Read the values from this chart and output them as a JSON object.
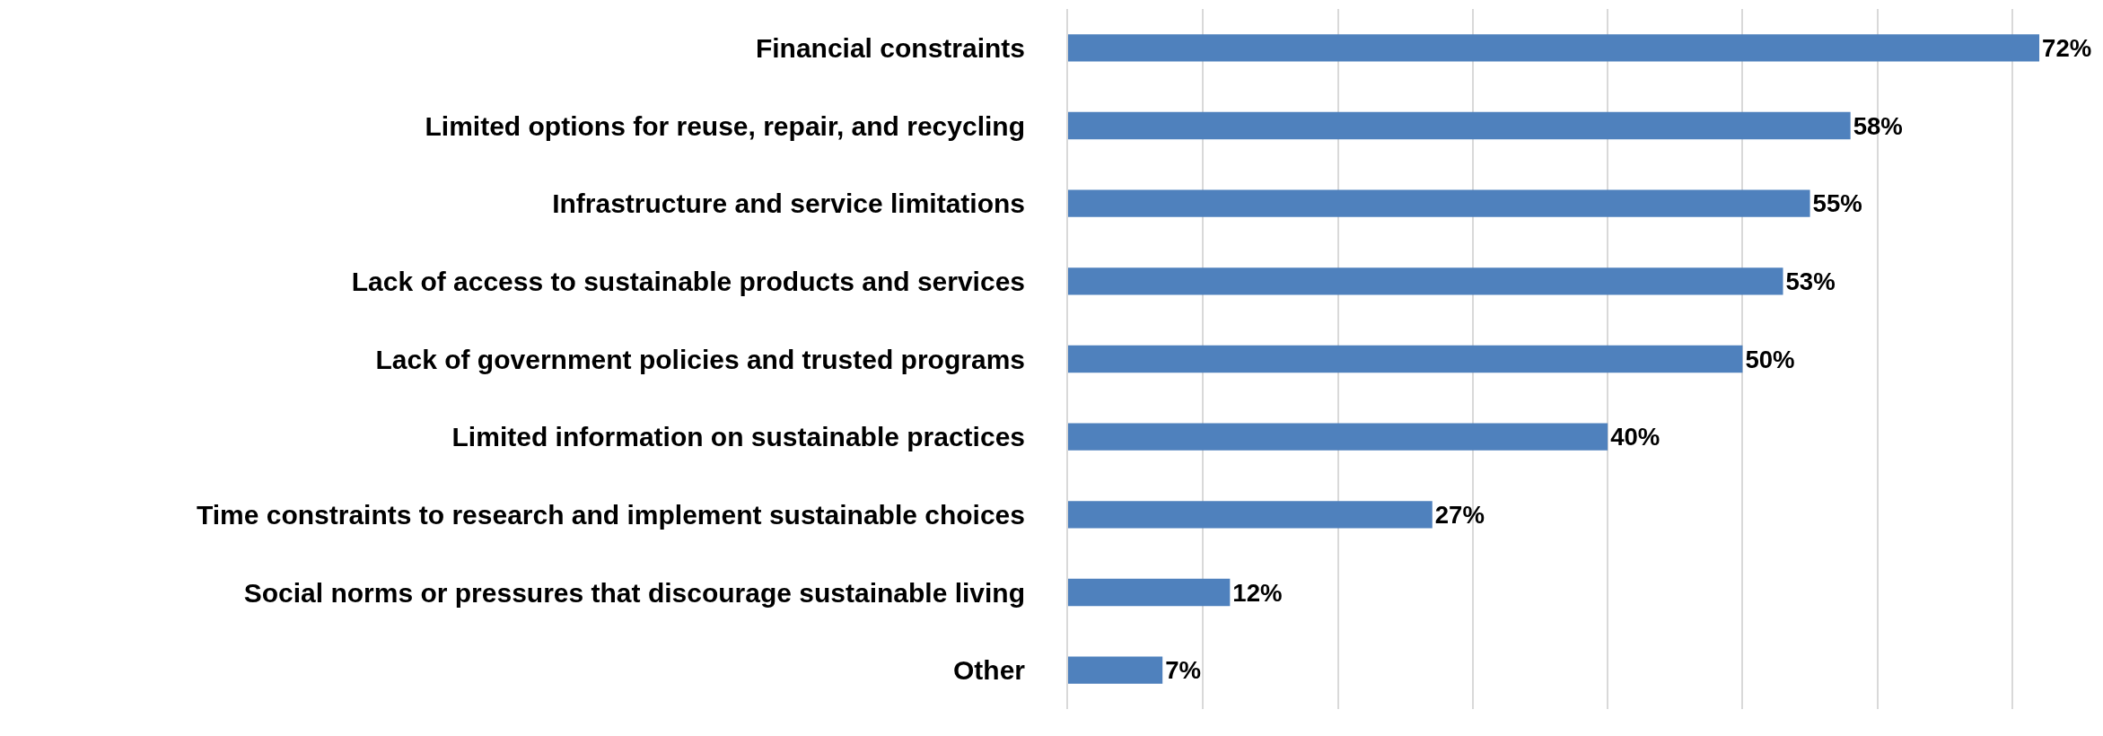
{
  "chart_data": {
    "type": "bar",
    "orientation": "horizontal",
    "categories": [
      "Financial constraints",
      "Limited options for reuse, repair, and recycling",
      "Infrastructure and service limitations",
      "Lack of access to sustainable products and services",
      "Lack of government policies and trusted programs",
      "Limited information on sustainable practices",
      "Time constraints to research and implement sustainable choices",
      "Social norms or pressures that discourage sustainable living",
      "Other"
    ],
    "values": [
      72,
      58,
      55,
      53,
      50,
      40,
      27,
      12,
      7
    ],
    "value_labels": [
      "72%",
      "58%",
      "55%",
      "53%",
      "50%",
      "40%",
      "27%",
      "12%",
      "7%"
    ],
    "color": "#4f81bd",
    "grid": "x",
    "tick_labels": "y"
  }
}
